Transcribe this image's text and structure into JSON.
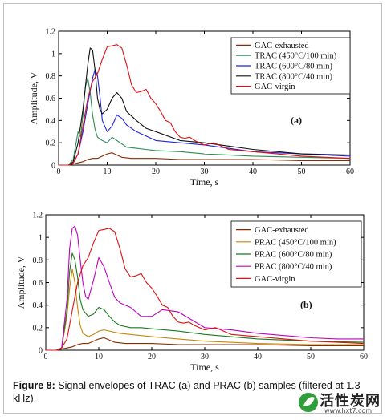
{
  "caption": {
    "label": "Figure 8:",
    "text": " Signal envelopes of TRAC (a) and PRAC (b) samples (filtered at 1.3 kHz)."
  },
  "watermark": {
    "title": "活性炭网",
    "url": "www.hxt7.com"
  },
  "chart_data": [
    {
      "type": "line",
      "panel_label": "(a)",
      "xlabel": "Time, s",
      "ylabel": "Amplitude, V",
      "xlim": [
        0,
        60
      ],
      "ylim": [
        0,
        1.2
      ],
      "xticks": [
        "0",
        "10",
        "20",
        "30",
        "40",
        "50",
        "60"
      ],
      "yticks": [
        "0",
        "0.2",
        "0.4",
        "0.6",
        "0.8",
        "1",
        "1.2"
      ],
      "legend_position": "top-right",
      "series": [
        {
          "name": "GAC-exhausted",
          "color": "#8b2a00",
          "x": [
            0,
            2,
            3,
            4,
            5,
            6,
            7,
            8,
            9,
            10,
            11,
            12,
            13,
            15,
            20,
            25,
            30,
            40,
            50,
            60
          ],
          "y": [
            0,
            0,
            0.01,
            0.02,
            0.03,
            0.05,
            0.06,
            0.06,
            0.08,
            0.1,
            0.11,
            0.09,
            0.07,
            0.06,
            0.06,
            0.05,
            0.05,
            0.05,
            0.04,
            0.04
          ]
        },
        {
          "name": "TRAC (450°C/100 min)",
          "color": "#2e8b57",
          "x": [
            0,
            2,
            3,
            4,
            4.5,
            5,
            5.5,
            6,
            6.5,
            7,
            7.5,
            8,
            9,
            10,
            11,
            12,
            14,
            16,
            18,
            20,
            25,
            30,
            40,
            50,
            60
          ],
          "y": [
            0,
            0,
            0.05,
            0.3,
            0.25,
            0.45,
            0.7,
            0.78,
            0.65,
            0.45,
            0.32,
            0.25,
            0.22,
            0.2,
            0.25,
            0.22,
            0.16,
            0.15,
            0.14,
            0.13,
            0.12,
            0.1,
            0.08,
            0.07,
            0.06
          ]
        },
        {
          "name": "TRAC (600°C/80 min)",
          "color": "#2222dd",
          "x": [
            0,
            2,
            3,
            4,
            5,
            6,
            7,
            7.5,
            8,
            8.5,
            9,
            10,
            11,
            12,
            13,
            14,
            16,
            18,
            20,
            25,
            30,
            40,
            50,
            60
          ],
          "y": [
            0,
            0,
            0.02,
            0.1,
            0.3,
            0.55,
            0.78,
            0.86,
            0.8,
            0.62,
            0.4,
            0.3,
            0.35,
            0.45,
            0.42,
            0.36,
            0.3,
            0.26,
            0.22,
            0.2,
            0.18,
            0.12,
            0.1,
            0.08
          ]
        },
        {
          "name": "TRAC  (800°C/40 min)",
          "color": "#111111",
          "x": [
            0,
            2,
            3,
            4,
            5,
            6,
            6.5,
            7,
            7.5,
            8,
            8.5,
            9,
            10,
            11,
            12,
            13,
            14,
            16,
            18,
            20,
            25,
            30,
            35,
            40,
            50,
            60
          ],
          "y": [
            0,
            0,
            0.03,
            0.2,
            0.5,
            0.9,
            1.05,
            1.03,
            0.85,
            0.6,
            0.5,
            0.46,
            0.5,
            0.6,
            0.65,
            0.6,
            0.48,
            0.4,
            0.33,
            0.3,
            0.22,
            0.2,
            0.17,
            0.14,
            0.1,
            0.09
          ]
        },
        {
          "name": "GAC-virgin",
          "color": "#e01010",
          "x": [
            0,
            2,
            3,
            4,
            5,
            6,
            7,
            8,
            9,
            10,
            11,
            12,
            13,
            14,
            15,
            16,
            17,
            18,
            19,
            20,
            21,
            22,
            23,
            24,
            25,
            26,
            27,
            28,
            29,
            30,
            32,
            35,
            40,
            45,
            50,
            55,
            60
          ],
          "y": [
            0,
            0,
            0.02,
            0.1,
            0.35,
            0.6,
            0.75,
            0.82,
            0.95,
            1.06,
            1.07,
            1.08,
            1.05,
            0.9,
            0.72,
            0.65,
            0.66,
            0.68,
            0.6,
            0.55,
            0.48,
            0.4,
            0.38,
            0.3,
            0.25,
            0.24,
            0.25,
            0.22,
            0.2,
            0.18,
            0.2,
            0.14,
            0.12,
            0.1,
            0.08,
            0.07,
            0.06
          ]
        }
      ]
    },
    {
      "type": "line",
      "panel_label": "(b)",
      "xlabel": "Time, s",
      "ylabel": "Amplitude, V",
      "xlim": [
        0,
        60
      ],
      "ylim": [
        0,
        1.2
      ],
      "xticks": [
        "0",
        "10",
        "20",
        "30",
        "40",
        "50",
        "60"
      ],
      "yticks": [
        "0",
        "0.2",
        "0.4",
        "0.6",
        "0.8",
        "1",
        "1.2"
      ],
      "legend_position": "top-right",
      "series": [
        {
          "name": "GAC-exhausted",
          "color": "#8b2a00",
          "x": [
            0,
            2,
            3,
            4,
            5,
            6,
            7,
            8,
            9,
            10,
            11,
            12,
            13,
            15,
            20,
            25,
            30,
            40,
            50,
            60
          ],
          "y": [
            0,
            0,
            0.01,
            0.02,
            0.03,
            0.05,
            0.06,
            0.06,
            0.08,
            0.1,
            0.11,
            0.09,
            0.07,
            0.06,
            0.06,
            0.05,
            0.05,
            0.05,
            0.04,
            0.04
          ]
        },
        {
          "name": "PRAC (450°C/100 min)",
          "color": "#c8860a",
          "x": [
            0,
            2,
            3,
            4,
            4.5,
            5,
            5.5,
            6,
            6.5,
            7,
            8,
            9,
            10,
            11,
            12,
            14,
            16,
            20,
            25,
            30,
            40,
            50,
            60
          ],
          "y": [
            0,
            0,
            0.02,
            0.3,
            0.55,
            0.72,
            0.6,
            0.38,
            0.22,
            0.15,
            0.12,
            0.14,
            0.17,
            0.18,
            0.17,
            0.15,
            0.14,
            0.12,
            0.1,
            0.08,
            0.06,
            0.05,
            0.05
          ]
        },
        {
          "name": "PRAC (600°C/80 min)",
          "color": "#1a7a1a",
          "x": [
            0,
            2,
            3,
            4,
            4.5,
            5,
            5.5,
            6,
            6.5,
            7,
            8,
            9,
            10,
            11,
            12,
            13,
            14,
            16,
            18,
            20,
            25,
            30,
            40,
            50,
            60
          ],
          "y": [
            0,
            0,
            0.02,
            0.35,
            0.7,
            0.86,
            0.8,
            0.65,
            0.45,
            0.36,
            0.3,
            0.32,
            0.38,
            0.36,
            0.3,
            0.25,
            0.22,
            0.2,
            0.2,
            0.19,
            0.17,
            0.14,
            0.1,
            0.08,
            0.07
          ]
        },
        {
          "name": "PRAC (800°C/40 min)",
          "color": "#c000c0",
          "x": [
            0,
            2,
            3,
            4,
            4.5,
            5,
            5.5,
            6,
            6.5,
            7,
            7.5,
            8,
            9,
            10,
            11,
            12,
            13,
            14,
            16,
            18,
            20,
            22,
            25,
            30,
            35,
            40,
            45,
            50,
            55,
            60
          ],
          "y": [
            0,
            0,
            0.02,
            0.45,
            0.9,
            1.08,
            1.1,
            1.02,
            0.8,
            0.6,
            0.48,
            0.45,
            0.62,
            0.82,
            0.74,
            0.6,
            0.47,
            0.42,
            0.38,
            0.3,
            0.3,
            0.36,
            0.34,
            0.2,
            0.18,
            0.15,
            0.13,
            0.11,
            0.1,
            0.1
          ]
        },
        {
          "name": "GAC-virgin",
          "color": "#e01010",
          "x": [
            0,
            2,
            3,
            4,
            5,
            6,
            7,
            8,
            9,
            10,
            11,
            12,
            13,
            14,
            15,
            16,
            17,
            18,
            19,
            20,
            21,
            22,
            23,
            24,
            25,
            26,
            27,
            28,
            29,
            30,
            32,
            35,
            40,
            45,
            50,
            55,
            60
          ],
          "y": [
            0,
            0,
            0.02,
            0.1,
            0.35,
            0.6,
            0.75,
            0.82,
            0.95,
            1.06,
            1.07,
            1.08,
            1.05,
            0.9,
            0.72,
            0.65,
            0.66,
            0.68,
            0.6,
            0.55,
            0.48,
            0.4,
            0.38,
            0.3,
            0.25,
            0.24,
            0.25,
            0.22,
            0.2,
            0.18,
            0.2,
            0.14,
            0.12,
            0.1,
            0.08,
            0.07,
            0.06
          ]
        }
      ]
    }
  ]
}
